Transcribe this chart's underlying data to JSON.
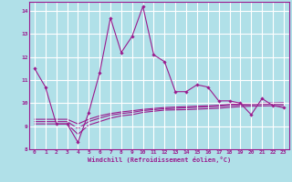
{
  "bg_color": "#b0e0e8",
  "grid_color": "#ffffff",
  "line_color": "#9b1b8e",
  "xlabel": "Windchill (Refroidissement éolien,°C)",
  "xlim": [
    -0.5,
    23.5
  ],
  "ylim": [
    8,
    14.4
  ],
  "yticks": [
    8,
    9,
    10,
    11,
    12,
    13,
    14
  ],
  "xticks": [
    0,
    1,
    2,
    3,
    4,
    5,
    6,
    7,
    8,
    9,
    10,
    11,
    12,
    13,
    14,
    15,
    16,
    17,
    18,
    19,
    20,
    21,
    22,
    23
  ],
  "main_x": [
    0,
    1,
    2,
    3,
    4,
    5,
    6,
    7,
    8,
    9,
    10,
    11,
    12,
    13,
    14,
    15,
    16,
    17,
    18,
    19,
    20,
    21,
    22,
    23
  ],
  "main_y": [
    11.5,
    10.7,
    9.1,
    9.1,
    8.3,
    9.6,
    11.3,
    13.7,
    12.2,
    12.9,
    14.2,
    12.1,
    11.8,
    10.5,
    10.5,
    10.8,
    10.7,
    10.1,
    10.1,
    10.0,
    9.5,
    10.2,
    9.9,
    9.8
  ],
  "line2_x": [
    0,
    1,
    2,
    3,
    4,
    5,
    6,
    7,
    8,
    9,
    10,
    11,
    12,
    13,
    14,
    15,
    16,
    17,
    18,
    19,
    20,
    21,
    22,
    23
  ],
  "line2_y": [
    9.1,
    9.1,
    9.1,
    9.1,
    8.65,
    9.05,
    9.2,
    9.35,
    9.45,
    9.5,
    9.6,
    9.65,
    9.7,
    9.71,
    9.72,
    9.74,
    9.76,
    9.78,
    9.82,
    9.85,
    9.87,
    9.88,
    9.89,
    9.9
  ],
  "line3_x": [
    0,
    1,
    2,
    3,
    4,
    5,
    6,
    7,
    8,
    9,
    10,
    11,
    12,
    13,
    14,
    15,
    16,
    17,
    18,
    19,
    20,
    21,
    22,
    23
  ],
  "line3_y": [
    9.2,
    9.2,
    9.2,
    9.2,
    8.9,
    9.2,
    9.35,
    9.48,
    9.55,
    9.6,
    9.68,
    9.72,
    9.76,
    9.78,
    9.8,
    9.82,
    9.84,
    9.86,
    9.9,
    9.92,
    9.93,
    9.95,
    9.96,
    9.97
  ],
  "line4_x": [
    0,
    1,
    2,
    3,
    4,
    5,
    6,
    7,
    8,
    9,
    10,
    11,
    12,
    13,
    14,
    15,
    16,
    17,
    18,
    19,
    20,
    21,
    22,
    23
  ],
  "line4_y": [
    9.3,
    9.3,
    9.3,
    9.3,
    9.1,
    9.3,
    9.45,
    9.55,
    9.62,
    9.67,
    9.73,
    9.77,
    9.81,
    9.83,
    9.85,
    9.87,
    9.89,
    9.91,
    9.95,
    9.97,
    9.98,
    10.0,
    10.01,
    10.02
  ]
}
